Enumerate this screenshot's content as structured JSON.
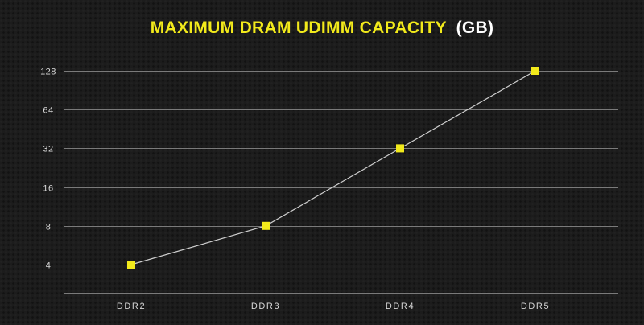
{
  "chart_data": {
    "type": "line",
    "title": "MAXIMUM DRAM UDIMM CAPACITY",
    "title_unit": "(GB)",
    "xlabel": "",
    "ylabel": "",
    "categories": [
      "DDR2",
      "DDR3",
      "DDR4",
      "DDR5"
    ],
    "series": [
      {
        "values": [
          4,
          8,
          32,
          128
        ]
      }
    ],
    "y_scale": "log2",
    "y_ticks": [
      4,
      8,
      16,
      32,
      64,
      128
    ],
    "y_tick_labels": [
      "4",
      "8",
      "16",
      "32",
      "64",
      "128"
    ],
    "ylim": [
      2,
      128
    ],
    "grid": true,
    "legend": "none"
  },
  "colors": {
    "background": "#1c1c1c",
    "title_accent": "#f2ea1b",
    "title_unit": "#ffffff",
    "marker": "#f2ea1b",
    "line": "#cfcfcf",
    "grid": "#7a7a7a",
    "tick_text": "#d8d8d8"
  }
}
